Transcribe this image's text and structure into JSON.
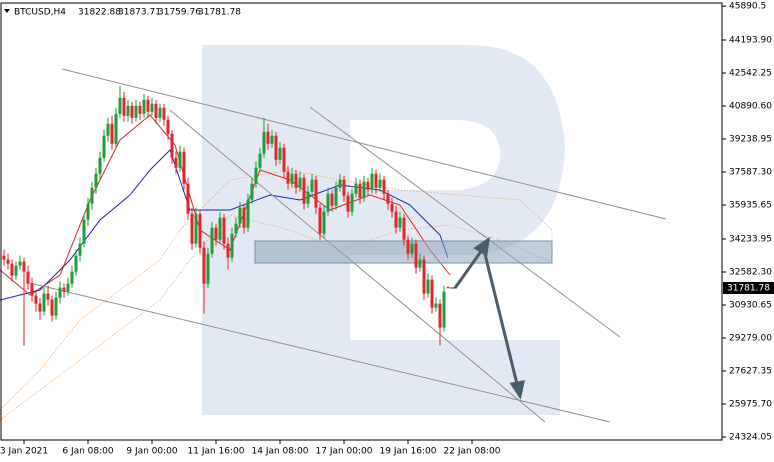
{
  "chart_data": {
    "type": "candlestick",
    "symbol": "BTCUSD,H4",
    "up_color": "#1f9d3a",
    "down_color": "#e3262b",
    "ylim": [
      24174,
      46046
    ],
    "yticks": [
      24324.05,
      {
        "value": 25975.7,
        "label": "25975.70"
      },
      27627.35,
      {
        "value": 29279,
        "label": "29279.00"
      },
      30930.65,
      {
        "value": 32582.3,
        "label": "32582.30"
      },
      34233.95,
      35935.65,
      {
        "value": 37587.3,
        "label": "37587.30"
      },
      39238.95,
      {
        "value": 40890.6,
        "label": "40890.60"
      },
      42542.25,
      {
        "value": 44193.9,
        "label": "44193.90"
      },
      45890.5
    ],
    "x_labels": [
      "3 Jan 2021",
      "6 Jan 08:00",
      "9 Jan 00:00",
      "11 Jan 16:00",
      "14 Jan 08:00",
      "17 Jan 00:00",
      "19 Jan 16:00",
      "22 Jan 08:00"
    ],
    "candles": [
      [
        33400,
        33700,
        32900,
        33200
      ],
      [
        33200,
        33500,
        32700,
        33000
      ],
      [
        33000,
        33200,
        32100,
        32400
      ],
      [
        32400,
        33100,
        32200,
        32900
      ],
      [
        32900,
        33400,
        32700,
        33100
      ],
      [
        33100,
        33300,
        28900,
        32600
      ],
      [
        32600,
        32900,
        31700,
        32000
      ],
      [
        32000,
        32300,
        31100,
        31400
      ],
      [
        31400,
        31700,
        30600,
        31000
      ],
      [
        31000,
        31300,
        30200,
        30600
      ],
      [
        30600,
        31800,
        30400,
        31500
      ],
      [
        31500,
        31900,
        30900,
        31200
      ],
      [
        31200,
        31400,
        30100,
        30400
      ],
      [
        30400,
        31600,
        30200,
        31300
      ],
      [
        31300,
        32100,
        31000,
        31800
      ],
      [
        31800,
        32000,
        31300,
        31600
      ],
      [
        31600,
        32300,
        31400,
        32000
      ],
      [
        32000,
        32900,
        31800,
        32600
      ],
      [
        32600,
        33700,
        32400,
        33400
      ],
      [
        33400,
        34300,
        33100,
        34000
      ],
      [
        34000,
        35500,
        33800,
        35200
      ],
      [
        35200,
        36300,
        34900,
        36000
      ],
      [
        36000,
        37100,
        35700,
        36800
      ],
      [
        36800,
        37800,
        36500,
        37500
      ],
      [
        37500,
        38600,
        37200,
        38300
      ],
      [
        38300,
        39700,
        38100,
        39400
      ],
      [
        39400,
        40300,
        39100,
        40000
      ],
      [
        40000,
        40400,
        38700,
        39000
      ],
      [
        39000,
        40800,
        38800,
        40500
      ],
      [
        40500,
        41900,
        40300,
        41300
      ],
      [
        41300,
        41600,
        40100,
        40400
      ],
      [
        40400,
        41200,
        40100,
        40900
      ],
      [
        40900,
        41100,
        40000,
        40300
      ],
      [
        40300,
        41200,
        40100,
        40900
      ],
      [
        40900,
        41100,
        40200,
        40500
      ],
      [
        40500,
        41500,
        40300,
        41200
      ],
      [
        41200,
        41400,
        40300,
        40600
      ],
      [
        40600,
        41300,
        40400,
        41000
      ],
      [
        41000,
        41200,
        40000,
        40300
      ],
      [
        40300,
        41000,
        40100,
        40800
      ],
      [
        40800,
        41000,
        39900,
        40200
      ],
      [
        40200,
        40400,
        39200,
        39500
      ],
      [
        39500,
        39700,
        38000,
        38300
      ],
      [
        38300,
        38600,
        37500,
        37800
      ],
      [
        37800,
        38900,
        37600,
        38600
      ],
      [
        38600,
        38800,
        36700,
        37000
      ],
      [
        37000,
        37300,
        35200,
        35500
      ],
      [
        35500,
        35800,
        33700,
        34000
      ],
      [
        34000,
        35800,
        33800,
        35500
      ],
      [
        35500,
        35700,
        33500,
        33800
      ],
      [
        33800,
        34100,
        30500,
        32000
      ],
      [
        32000,
        33800,
        31800,
        33500
      ],
      [
        33500,
        35100,
        33300,
        34800
      ],
      [
        34800,
        35000,
        33900,
        34200
      ],
      [
        34200,
        35600,
        34000,
        35300
      ],
      [
        35300,
        35500,
        33700,
        34000
      ],
      [
        34000,
        34300,
        32700,
        33300
      ],
      [
        33300,
        34800,
        33100,
        34500
      ],
      [
        34500,
        35300,
        34300,
        35000
      ],
      [
        35000,
        36100,
        34800,
        35800
      ],
      [
        35800,
        36000,
        34500,
        34800
      ],
      [
        34800,
        36500,
        34600,
        36200
      ],
      [
        36200,
        37300,
        36000,
        37000
      ],
      [
        37000,
        38100,
        36800,
        37800
      ],
      [
        37800,
        38800,
        37600,
        38500
      ],
      [
        38500,
        40300,
        38300,
        39600
      ],
      [
        39600,
        40000,
        38700,
        39000
      ],
      [
        39000,
        39700,
        38800,
        39400
      ],
      [
        39400,
        39600,
        37900,
        38200
      ],
      [
        38200,
        39100,
        38000,
        38800
      ],
      [
        38800,
        39000,
        37300,
        37600
      ],
      [
        37600,
        37900,
        36700,
        37000
      ],
      [
        37000,
        37800,
        36800,
        37500
      ],
      [
        37500,
        37700,
        36500,
        36800
      ],
      [
        36800,
        37600,
        36600,
        37300
      ],
      [
        37300,
        37500,
        35700,
        36000
      ],
      [
        36000,
        36900,
        35800,
        36600
      ],
      [
        36600,
        37500,
        36400,
        37200
      ],
      [
        37200,
        37400,
        35500,
        35800
      ],
      [
        35800,
        36000,
        34200,
        34500
      ],
      [
        34500,
        35900,
        34300,
        35600
      ],
      [
        35600,
        36800,
        35400,
        36500
      ],
      [
        36500,
        36700,
        35600,
        35900
      ],
      [
        35900,
        37100,
        35700,
        36800
      ],
      [
        36800,
        37500,
        36600,
        37200
      ],
      [
        37200,
        37400,
        36100,
        36400
      ],
      [
        36400,
        36600,
        35300,
        35600
      ],
      [
        35600,
        36800,
        35400,
        36500
      ],
      [
        36500,
        37300,
        36300,
        37000
      ],
      [
        37000,
        37200,
        36000,
        36300
      ],
      [
        36300,
        37400,
        36100,
        37100
      ],
      [
        37100,
        37300,
        36400,
        36700
      ],
      [
        36700,
        37800,
        36500,
        37500
      ],
      [
        37500,
        37700,
        36500,
        36800
      ],
      [
        36800,
        37500,
        36600,
        37200
      ],
      [
        37200,
        37400,
        36200,
        36500
      ],
      [
        36500,
        36700,
        35700,
        36000
      ],
      [
        36000,
        36300,
        35300,
        35600
      ],
      [
        35600,
        35900,
        34500,
        34800
      ],
      [
        34800,
        35600,
        34600,
        35300
      ],
      [
        35300,
        35500,
        33900,
        34200
      ],
      [
        34200,
        34400,
        33200,
        33500
      ],
      [
        33500,
        34300,
        33300,
        34000
      ],
      [
        34000,
        34200,
        32500,
        32800
      ],
      [
        32800,
        33500,
        32600,
        33200
      ],
      [
        33200,
        33400,
        31200,
        31500
      ],
      [
        31500,
        32500,
        31300,
        32200
      ],
      [
        32200,
        32400,
        30500,
        30800
      ],
      [
        30800,
        31300,
        30600,
        31000
      ],
      [
        31000,
        31200,
        28900,
        29800
      ],
      [
        29800,
        31900,
        29600,
        31600
      ],
      [
        31822.88,
        31873.71,
        31759.76,
        31781.78
      ]
    ]
  }
}
